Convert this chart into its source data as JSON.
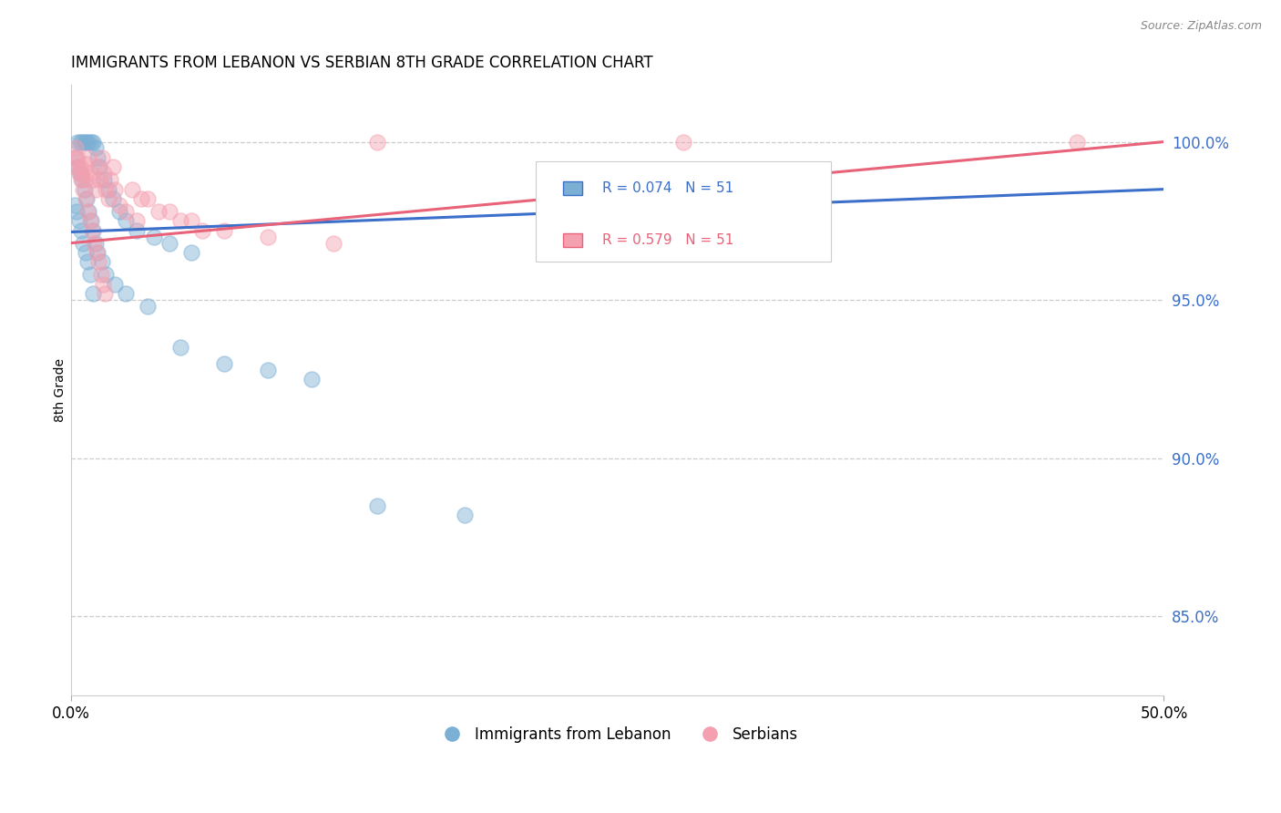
{
  "title": "IMMIGRANTS FROM LEBANON VS SERBIAN 8TH GRADE CORRELATION CHART",
  "source": "Source: ZipAtlas.com",
  "ylabel": "8th Grade",
  "y_ticks": [
    85.0,
    90.0,
    95.0,
    100.0
  ],
  "y_tick_labels": [
    "85.0%",
    "90.0%",
    "95.0%",
    "100.0%"
  ],
  "xlim": [
    0.0,
    50.0
  ],
  "ylim": [
    82.5,
    101.8
  ],
  "lebanon_R": 0.074,
  "lebanon_N": 51,
  "serbian_R": 0.579,
  "serbian_N": 51,
  "lebanon_color": "#7BAFD4",
  "serbian_color": "#F4A0B0",
  "lebanon_line_color": "#3B6FC9",
  "serbian_line_color": "#E8637A",
  "legend_lebanon": "Immigrants from Lebanon",
  "legend_serbian": "Serbians",
  "lebanon_x": [
    0.3,
    0.4,
    0.5,
    0.6,
    0.7,
    0.8,
    0.9,
    1.0,
    1.1,
    1.2,
    1.3,
    1.5,
    1.7,
    1.9,
    2.2,
    2.5,
    3.0,
    3.8,
    4.5,
    5.5,
    0.2,
    0.3,
    0.4,
    0.5,
    0.6,
    0.7,
    0.8,
    0.9,
    1.0,
    1.1,
    1.2,
    1.4,
    1.6,
    2.0,
    2.5,
    3.5,
    5.0,
    7.0,
    9.0,
    11.0,
    14.0,
    18.0,
    0.15,
    0.25,
    0.35,
    0.45,
    0.55,
    0.65,
    0.75,
    0.85,
    1.0
  ],
  "lebanon_y": [
    100.0,
    100.0,
    100.0,
    100.0,
    100.0,
    100.0,
    100.0,
    100.0,
    99.8,
    99.5,
    99.2,
    98.8,
    98.5,
    98.2,
    97.8,
    97.5,
    97.2,
    97.0,
    96.8,
    96.5,
    99.5,
    99.2,
    99.0,
    98.8,
    98.5,
    98.2,
    97.8,
    97.5,
    97.2,
    96.8,
    96.5,
    96.2,
    95.8,
    95.5,
    95.2,
    94.8,
    93.5,
    93.0,
    92.8,
    92.5,
    88.5,
    88.2,
    98.0,
    97.8,
    97.5,
    97.2,
    96.8,
    96.5,
    96.2,
    95.8,
    95.2
  ],
  "serbian_x": [
    0.2,
    0.3,
    0.4,
    0.5,
    0.6,
    0.7,
    0.8,
    0.9,
    1.0,
    1.1,
    1.2,
    1.3,
    1.4,
    1.5,
    1.6,
    1.7,
    1.8,
    1.9,
    2.0,
    2.2,
    2.5,
    3.0,
    3.5,
    4.0,
    5.0,
    6.0,
    0.15,
    0.25,
    0.35,
    0.45,
    0.55,
    0.65,
    0.75,
    0.85,
    0.95,
    1.05,
    1.15,
    1.25,
    1.35,
    1.45,
    1.55,
    14.0,
    28.0,
    46.0,
    2.8,
    3.2,
    4.5,
    5.5,
    7.0,
    9.0,
    12.0
  ],
  "serbian_y": [
    99.8,
    99.5,
    99.2,
    99.0,
    98.8,
    99.3,
    99.5,
    99.0,
    98.8,
    98.5,
    99.2,
    98.8,
    99.5,
    99.0,
    98.5,
    98.2,
    98.8,
    99.2,
    98.5,
    98.0,
    97.8,
    97.5,
    98.2,
    97.8,
    97.5,
    97.2,
    99.5,
    99.2,
    99.0,
    98.8,
    98.5,
    98.2,
    97.8,
    97.5,
    97.2,
    96.8,
    96.5,
    96.2,
    95.8,
    95.5,
    95.2,
    100.0,
    100.0,
    100.0,
    98.5,
    98.2,
    97.8,
    97.5,
    97.2,
    97.0,
    96.8
  ]
}
